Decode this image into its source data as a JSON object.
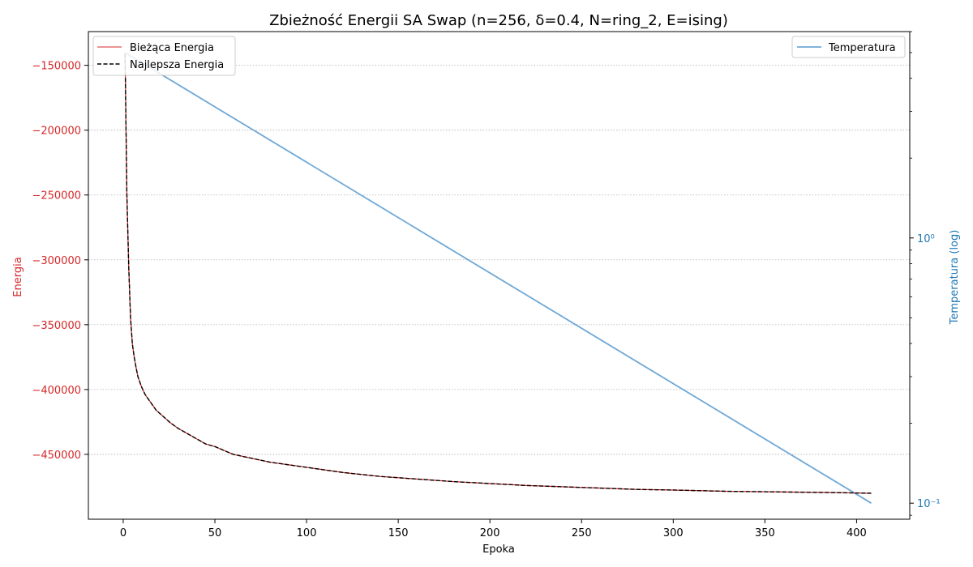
{
  "chart_data": {
    "type": "line",
    "title": "Zbieżność Energii SA Swap (n=256, δ=0.4, N=ring_2, E=ising)",
    "xlabel": "Epoka",
    "ylabel": "Energia",
    "y2label": "Temperatura (log)",
    "xlim": [
      -19,
      429
    ],
    "ylim": [
      -500000,
      -124000
    ],
    "y2lim": [
      0.087,
      6.0
    ],
    "y2_scale": "log",
    "x_ticks": [
      0,
      50,
      100,
      150,
      200,
      250,
      300,
      350,
      400
    ],
    "x_tick_labels": [
      "0",
      "50",
      "100",
      "150",
      "200",
      "250",
      "300",
      "350",
      "400"
    ],
    "y_ticks": [
      -150000,
      -200000,
      -250000,
      -300000,
      -350000,
      -400000,
      -450000
    ],
    "y_tick_labels": [
      "−150000",
      "−200000",
      "−250000",
      "−300000",
      "−350000",
      "−400000",
      "−450000"
    ],
    "y2_ticks": [
      1,
      0.1
    ],
    "y2_tick_labels": [
      "10⁰",
      "10⁻¹"
    ],
    "grid": "y-dotted",
    "x": [
      1,
      2,
      3,
      4,
      5,
      6,
      7,
      8,
      10,
      12,
      15,
      18,
      22,
      26,
      30,
      35,
      40,
      45,
      50,
      60,
      70,
      80,
      90,
      100,
      120,
      140,
      160,
      180,
      200,
      220,
      250,
      280,
      300,
      330,
      360,
      390,
      408
    ],
    "series": [
      {
        "name": "Bieżąca Energia",
        "axis": "left",
        "color": "#d62728",
        "style": "solid",
        "y": [
          -141000,
          -250000,
          -305000,
          -345000,
          -365000,
          -375000,
          -383000,
          -390000,
          -398000,
          -404000,
          -410000,
          -416000,
          -421000,
          -426000,
          -430000,
          -434000,
          -438000,
          -442000,
          -444000,
          -450000,
          -453000,
          -456000,
          -458000,
          -460000,
          -464000,
          -467000,
          -469000,
          -471000,
          -472500,
          -474000,
          -475500,
          -477000,
          -477500,
          -478500,
          -479000,
          -479500,
          -480000
        ]
      },
      {
        "name": "Najlepsza Energia",
        "axis": "left",
        "color": "#000000",
        "style": "dashed",
        "y": [
          -141000,
          -250000,
          -305000,
          -345000,
          -365000,
          -375000,
          -383000,
          -390000,
          -398000,
          -404000,
          -410000,
          -416000,
          -421000,
          -426000,
          -430000,
          -434000,
          -438000,
          -442000,
          -444000,
          -450000,
          -453000,
          -456000,
          -458000,
          -460000,
          -464000,
          -467000,
          -469000,
          -471000,
          -472500,
          -474000,
          -475500,
          -477000,
          -477500,
          -478500,
          -479000,
          -479500,
          -480000
        ]
      },
      {
        "name": "Temperatura",
        "axis": "right",
        "color": "#6fa8d6",
        "style": "solid",
        "x": [
          1,
          408
        ],
        "y": [
          5.0,
          0.1
        ]
      }
    ],
    "legend_left": "top-left",
    "legend_right": "top-right",
    "colors": {
      "energy_axis": "#d62728",
      "temp_axis": "#1f77b4"
    }
  }
}
